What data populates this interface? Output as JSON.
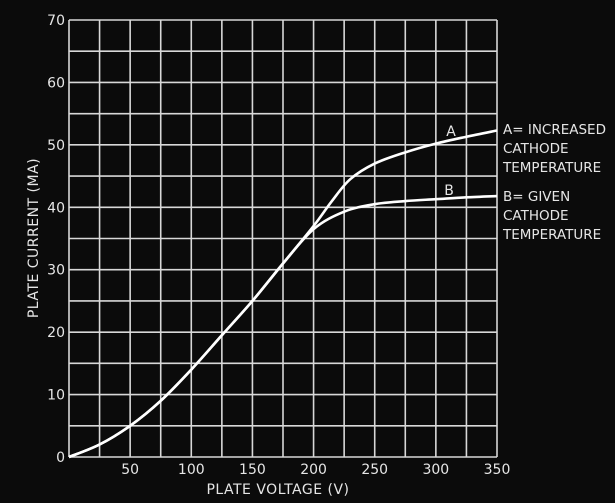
{
  "chart_data": {
    "type": "line",
    "title": "",
    "xlabel": "PLATE VOLTAGE (V)",
    "ylabel": "PLATE CURRENT (MA)",
    "xlim": [
      0,
      350
    ],
    "ylim": [
      0,
      70
    ],
    "grid": true,
    "x_ticks": [
      50,
      100,
      150,
      200,
      250,
      300,
      350
    ],
    "y_ticks": [
      0,
      10,
      20,
      30,
      40,
      50,
      60,
      70
    ],
    "series": [
      {
        "name": "A",
        "annotation": [
          "A= INCREASED",
          "CATHODE",
          "TEMPERATURE"
        ],
        "color": "#ffffff",
        "x": [
          0,
          25,
          50,
          75,
          100,
          125,
          150,
          175,
          200,
          215,
          230,
          250,
          275,
          300,
          325,
          350
        ],
        "y": [
          0,
          2,
          5,
          9,
          14,
          19.5,
          25,
          31,
          37,
          41,
          44.5,
          47,
          48.8,
          50.2,
          51.3,
          52.3
        ]
      },
      {
        "name": "B",
        "annotation": [
          "B= GIVEN",
          "CATHODE",
          "TEMPERATURE"
        ],
        "color": "#ffffff",
        "x": [
          0,
          25,
          50,
          75,
          100,
          125,
          150,
          175,
          200,
          225,
          250,
          275,
          300,
          325,
          350
        ],
        "y": [
          0,
          2,
          5,
          9,
          14,
          19.5,
          25,
          31,
          36.5,
          39.3,
          40.5,
          41,
          41.3,
          41.6,
          41.8
        ]
      }
    ]
  }
}
